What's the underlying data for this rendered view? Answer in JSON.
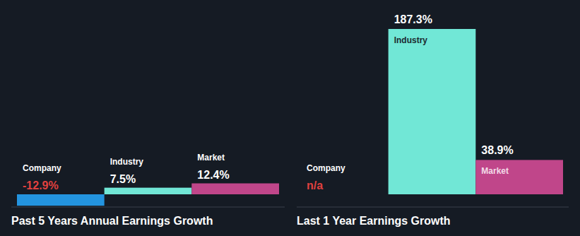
{
  "chart_data": [
    {
      "type": "bar",
      "title": "Past 5 Years Annual Earnings Growth",
      "categories": [
        "Company",
        "Industry",
        "Market"
      ],
      "values": [
        -12.9,
        7.5,
        12.4
      ],
      "value_labels": [
        "-12.9%",
        "7.5%",
        "12.4%"
      ],
      "colors": [
        "#2394df",
        "#71e7d6",
        "#c0468a"
      ],
      "data_labels": true,
      "tick_labels": false
    },
    {
      "type": "bar",
      "title": "Last 1 Year Earnings Growth",
      "categories": [
        "Company",
        "Industry",
        "Market"
      ],
      "values": [
        null,
        187.3,
        38.9
      ],
      "value_labels": [
        "n/a",
        "187.3%",
        "38.9%"
      ],
      "colors": [
        "#2394df",
        "#71e7d6",
        "#c0468a"
      ],
      "data_labels": true,
      "tick_labels": false
    }
  ]
}
